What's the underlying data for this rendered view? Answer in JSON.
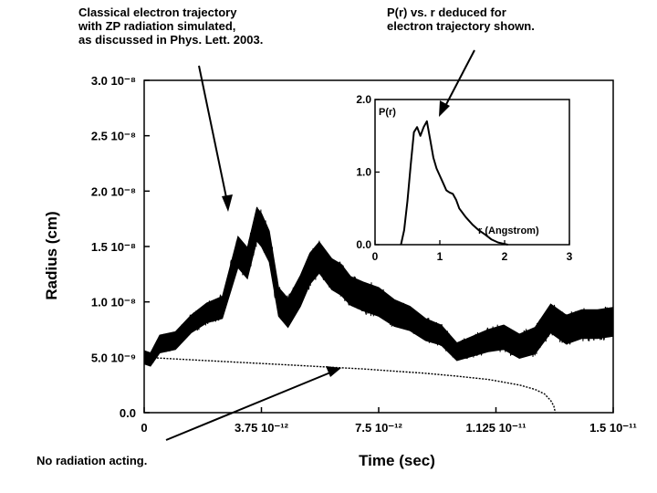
{
  "annotations": {
    "classical": "Classical electron trajectory\nwith ZP radiation simulated,\nas discussed in Phys. Lett. 2003.",
    "inset_note": "P(r) vs. r  deduced for\nelectron trajectory shown.",
    "no_radiation": "No radiation acting."
  },
  "chart_data": [
    {
      "type": "line",
      "xlabel": "Time (sec)",
      "ylabel": "Radius (cm)",
      "xlim": [
        0,
        1.5e-11
      ],
      "ylim": [
        0,
        3e-08
      ],
      "x_ticks": [
        {
          "value": 0,
          "label": "0"
        },
        {
          "value": 3.75e-12,
          "label": "3.75 10⁻¹²"
        },
        {
          "value": 7.5e-12,
          "label": "7.5 10⁻¹²"
        },
        {
          "value": 1.125e-11,
          "label": "1.125 10⁻¹¹"
        },
        {
          "value": 1.5e-11,
          "label": "1.5 10⁻¹¹"
        }
      ],
      "y_ticks": [
        {
          "value": 0,
          "label": "0.0"
        },
        {
          "value": 5e-09,
          "label": "5.0 10⁻⁹"
        },
        {
          "value": 1e-08,
          "label": "1.0 10⁻⁸"
        },
        {
          "value": 1.5e-08,
          "label": "1.5 10⁻⁸"
        },
        {
          "value": 2e-08,
          "label": "2.0 10⁻⁸"
        },
        {
          "value": 2.5e-08,
          "label": "2.5 10⁻⁸"
        },
        {
          "value": 3e-08,
          "label": "3.0 10⁻⁸"
        }
      ],
      "series": [
        {
          "role": "zp-trajectory",
          "color": "#000000",
          "x": [
            0,
            2e-13,
            5e-13,
            1e-12,
            1.5e-12,
            2e-12,
            2.5e-12,
            3e-12,
            3.3e-12,
            3.6e-12,
            3.75e-12,
            4e-12,
            4.3e-12,
            4.6e-12,
            5e-12,
            5.3e-12,
            5.6e-12,
            6e-12,
            6.3e-12,
            6.6e-12,
            7e-12,
            7.5e-12,
            8e-12,
            8.5e-12,
            9e-12,
            9.5e-12,
            1e-11,
            1.05e-11,
            1.1e-11,
            1.15e-11,
            1.2e-11,
            1.25e-11,
            1.3e-11,
            1.35e-11,
            1.4e-11,
            1.45e-11,
            1.5e-11
          ],
          "y": [
            5e-09,
            4.8e-09,
            6.2e-09,
            6.5e-09,
            8e-09,
            9e-09,
            9.5e-09,
            1.45e-08,
            1.35e-08,
            1.7e-08,
            1.65e-08,
            1.5e-08,
            1e-08,
            9e-09,
            1.1e-08,
            1.3e-08,
            1.4e-08,
            1.25e-08,
            1.2e-08,
            1.1e-08,
            1.05e-08,
            1e-08,
            9e-09,
            8.5e-09,
            7.5e-09,
            7e-09,
            5.5e-09,
            6e-09,
            6.5e-09,
            6.8e-09,
            6e-09,
            6.5e-09,
            8.5e-09,
            7.5e-09,
            8e-09,
            8e-09,
            8.2e-09
          ],
          "band": [
            6e-10,
            6e-10,
            8e-10,
            8e-10,
            8e-10,
            9e-10,
            1e-09,
            1.4e-09,
            1.4e-09,
            1.5e-09,
            1.5e-09,
            1.4e-09,
            1.3e-09,
            1.3e-09,
            1.4e-09,
            1.4e-09,
            1.4e-09,
            1.4e-09,
            1.4e-09,
            1.3e-09,
            1.3e-09,
            1.3e-09,
            1.2e-09,
            1.1e-09,
            1e-09,
            9e-10,
            8e-10,
            9e-10,
            1e-09,
            1.1e-09,
            1.1e-09,
            1.2e-09,
            1.3e-09,
            1.3e-09,
            1.3e-09,
            1.3e-09,
            1.3e-09
          ]
        },
        {
          "role": "no-radiation",
          "color": "#000000",
          "x": [
            0,
            1e-12,
            2e-12,
            3e-12,
            4e-12,
            5e-12,
            6e-12,
            7e-12,
            8e-12,
            9e-12,
            1e-11,
            1.1e-11,
            1.2e-11,
            1.25e-11,
            1.28e-11,
            1.3e-11,
            1.31e-11,
            1.315e-11
          ],
          "y": [
            5e-09,
            4.85e-09,
            4.7e-09,
            4.55e-09,
            4.4e-09,
            4.25e-09,
            4.1e-09,
            3.95e-09,
            3.75e-09,
            3.55e-09,
            3.3e-09,
            3e-09,
            2.5e-09,
            2.1e-09,
            1.7e-09,
            1.1e-09,
            6e-10,
            0
          ]
        }
      ]
    },
    {
      "type": "line",
      "xlabel": "r (Angstrom)",
      "ylabel": "P(r)",
      "xlim": [
        0,
        3
      ],
      "ylim": [
        0,
        2.0
      ],
      "x_ticks": [
        {
          "value": 0,
          "label": "0"
        },
        {
          "value": 1,
          "label": "1"
        },
        {
          "value": 2,
          "label": "2"
        },
        {
          "value": 3,
          "label": "3"
        }
      ],
      "y_ticks": [
        {
          "value": 0,
          "label": "0.0"
        },
        {
          "value": 1.0,
          "label": "1.0"
        },
        {
          "value": 2.0,
          "label": "2.0"
        }
      ],
      "series": [
        {
          "role": "p-of-r",
          "color": "#000000",
          "x": [
            0.4,
            0.45,
            0.5,
            0.55,
            0.6,
            0.65,
            0.7,
            0.75,
            0.8,
            0.85,
            0.9,
            0.95,
            1.0,
            1.05,
            1.1,
            1.15,
            1.2,
            1.25,
            1.3,
            1.4,
            1.5,
            1.6,
            1.7,
            1.8,
            1.9,
            2.0,
            2.05
          ],
          "y": [
            0.0,
            0.2,
            0.6,
            1.1,
            1.55,
            1.62,
            1.5,
            1.62,
            1.7,
            1.45,
            1.2,
            1.05,
            0.95,
            0.85,
            0.75,
            0.72,
            0.7,
            0.62,
            0.5,
            0.38,
            0.28,
            0.2,
            0.14,
            0.07,
            0.03,
            0.01,
            0.0
          ]
        }
      ]
    }
  ]
}
